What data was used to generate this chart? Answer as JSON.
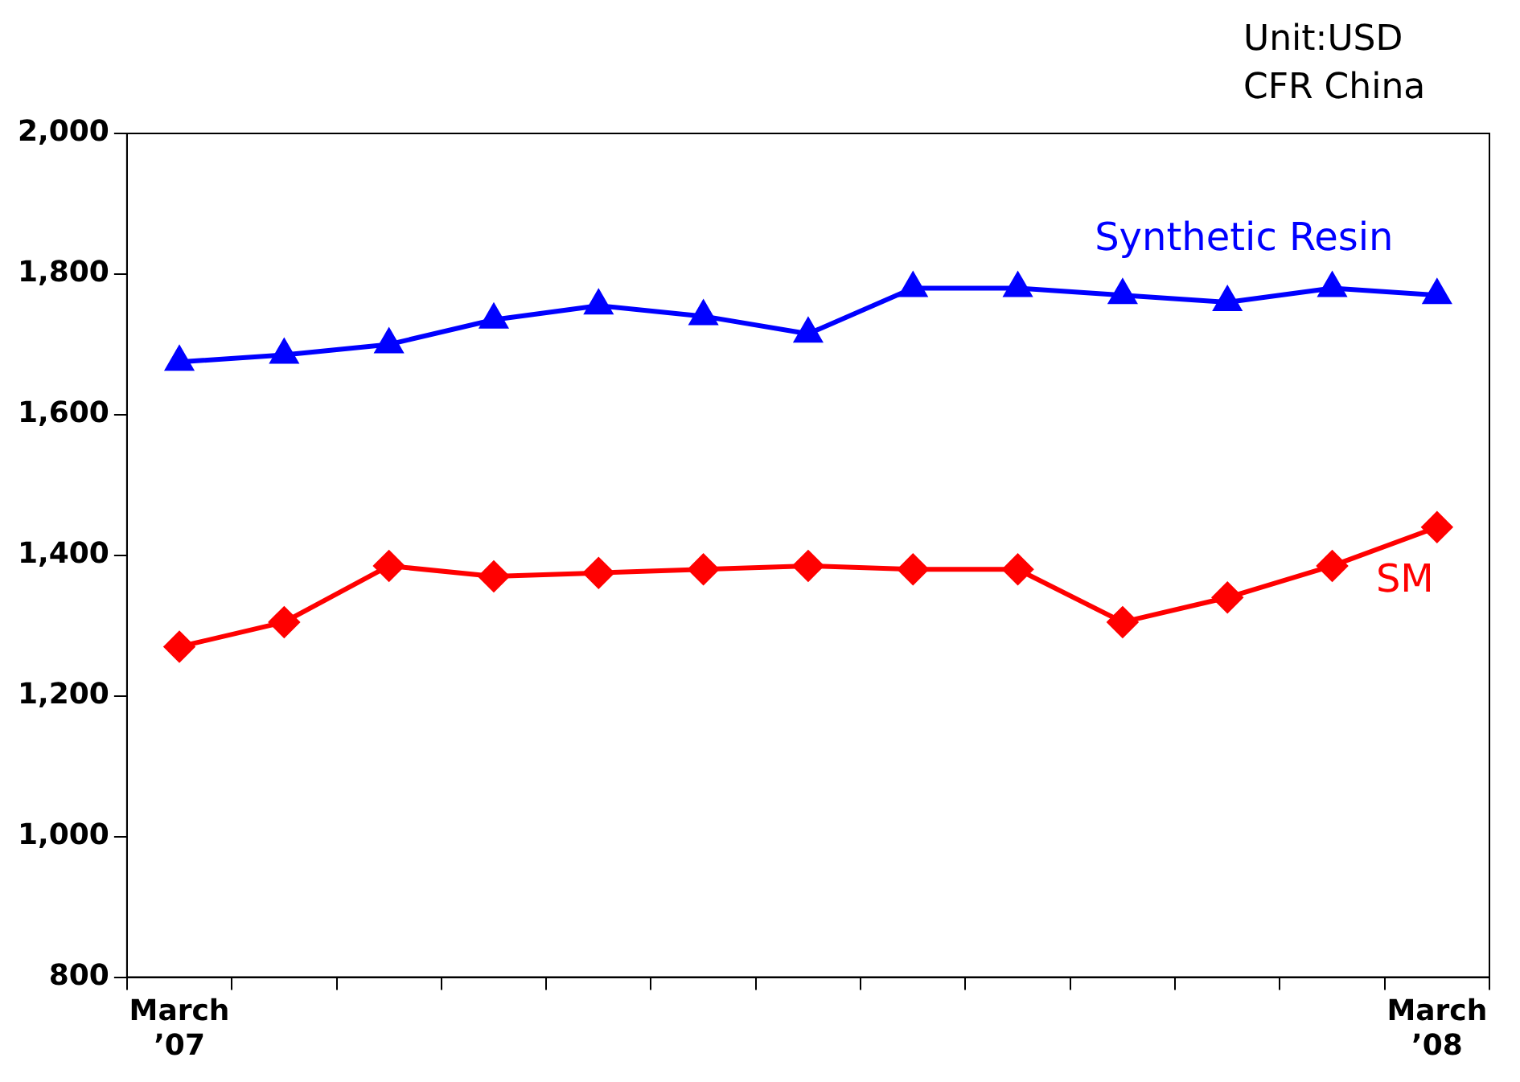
{
  "chart_data": {
    "type": "line",
    "annotations": [
      "Unit:USD",
      "CFR China"
    ],
    "categories": [
      "March ’07",
      null,
      null,
      null,
      null,
      null,
      null,
      null,
      null,
      null,
      null,
      null,
      "March ’08"
    ],
    "series": [
      {
        "name": "Synthetic Resin",
        "color": "#0000ff",
        "marker": "triangle",
        "values": [
          1675,
          1685,
          1700,
          1735,
          1755,
          1740,
          1715,
          1780,
          1780,
          1770,
          1760,
          1780,
          1770
        ]
      },
      {
        "name": "SM",
        "color": "#ff0000",
        "marker": "diamond",
        "values": [
          1270,
          1305,
          1385,
          1370,
          1375,
          1380,
          1385,
          1380,
          1380,
          1305,
          1340,
          1385,
          1440
        ]
      }
    ],
    "ylim": [
      800,
      2000
    ],
    "yticks": [
      800,
      {
        "value": 1000,
        "label": "1,000"
      },
      {
        "value": 1200,
        "label": "1,200"
      },
      {
        "value": 1400,
        "label": "1,400"
      },
      {
        "value": 1600,
        "label": "1,600"
      },
      {
        "value": 1800,
        "label": "1,800"
      },
      {
        "value": 2000,
        "label": "2,000"
      }
    ],
    "grid": false,
    "legend": false,
    "line_style": "solid"
  }
}
